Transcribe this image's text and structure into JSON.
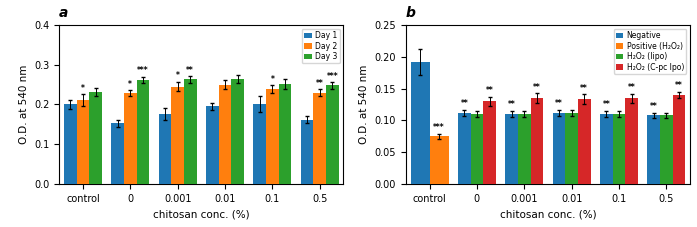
{
  "chart_data": [
    {
      "type": "bar",
      "title": "a",
      "categories": [
        "control",
        "0",
        "0.001",
        "0.01",
        "0.1",
        "0.5"
      ],
      "series": [
        {
          "name": "Day 1",
          "values": [
            0.2,
            0.152,
            0.177,
            0.195,
            0.202,
            0.162
          ],
          "errors": [
            0.012,
            0.008,
            0.015,
            0.008,
            0.02,
            0.008
          ]
        },
        {
          "name": "Day 2",
          "values": [
            0.21,
            0.228,
            0.245,
            0.25,
            0.238,
            0.23
          ],
          "errors": [
            0.015,
            0.008,
            0.012,
            0.012,
            0.01,
            0.008
          ],
          "annotations": [
            "*",
            "*",
            "*",
            null,
            "*",
            "**"
          ]
        },
        {
          "name": "Day 3",
          "values": [
            0.232,
            0.262,
            0.263,
            0.265,
            0.252,
            0.248
          ],
          "errors": [
            0.01,
            0.008,
            0.008,
            0.01,
            0.012,
            0.008
          ],
          "annotations": [
            null,
            "***",
            "**",
            null,
            null,
            "***"
          ]
        }
      ],
      "x_label": "chitosan conc. (%)",
      "y_label": "O.D. at 540 nm",
      "ylim": [
        0.0,
        0.4
      ],
      "yticks": [
        0.0,
        0.1,
        0.2,
        0.3,
        0.4
      ],
      "legend": "upper right"
    },
    {
      "type": "bar",
      "title": "b",
      "categories": [
        "control",
        "0",
        "0.001",
        "0.01",
        "0.1",
        "0.5"
      ],
      "series": [
        {
          "name": "Negative",
          "values": [
            0.192,
            0.112,
            0.11,
            0.112,
            0.11,
            0.108
          ],
          "errors": [
            0.02,
            0.005,
            0.005,
            0.005,
            0.005,
            0.004
          ],
          "annotations": [
            null,
            "**",
            "**",
            "**",
            "**",
            "**"
          ]
        },
        {
          "name": "Positive (H₂O₂)",
          "values": [
            0.075,
            null,
            null,
            null,
            null,
            null
          ],
          "errors": [
            0.004,
            null,
            null,
            null,
            null,
            null
          ],
          "annotations": [
            "***",
            null,
            null,
            null,
            null,
            null
          ]
        },
        {
          "name": "H₂O₂ (lipo)",
          "values": [
            null,
            0.11,
            0.11,
            0.112,
            0.11,
            0.108
          ],
          "errors": [
            null,
            0.005,
            0.005,
            0.005,
            0.005,
            0.004
          ]
        },
        {
          "name": "H₂O₂ (C-pc lpo)",
          "values": [
            null,
            0.13,
            0.135,
            0.133,
            0.135,
            0.14
          ],
          "errors": [
            null,
            0.007,
            0.008,
            0.008,
            0.007,
            0.005
          ],
          "annotations": [
            null,
            "**",
            "**",
            "**",
            "**",
            "**"
          ]
        }
      ],
      "x_label": "chitosan conc. (%)",
      "y_label": "O.D. at 540 nm",
      "ylim": [
        0.0,
        0.25
      ],
      "yticks": [
        {
          "value": 0.0,
          "label": "0.00"
        },
        {
          "value": 0.05,
          "label": "0.05"
        },
        {
          "value": 0.1,
          "label": "0.10"
        },
        {
          "value": 0.15,
          "label": "0.15"
        },
        {
          "value": 0.2,
          "label": "0.20"
        },
        {
          "value": 0.25,
          "label": "0.25"
        }
      ],
      "legend": "upper right"
    }
  ]
}
